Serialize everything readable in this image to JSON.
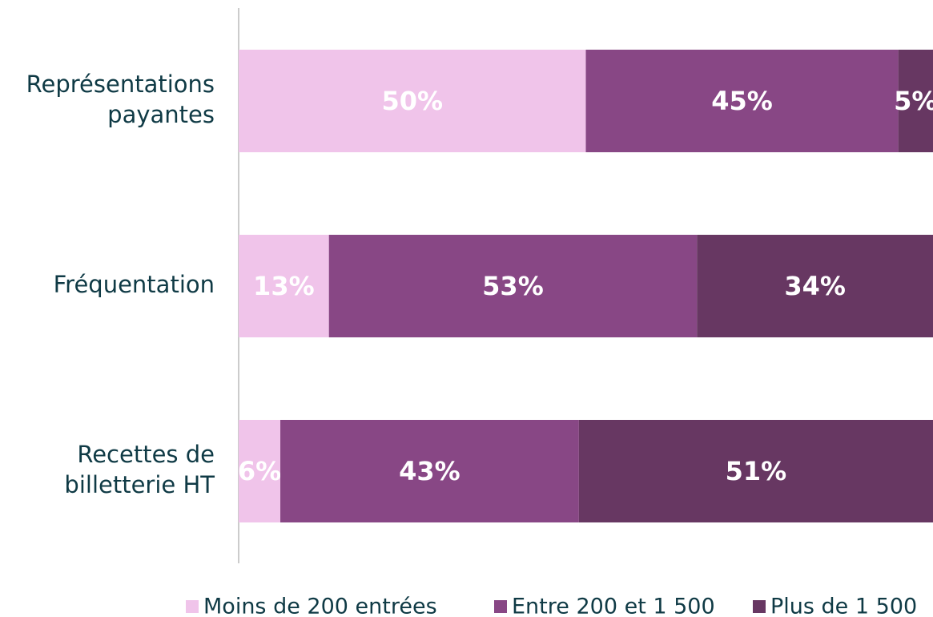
{
  "chart_data": {
    "type": "stacked-bar-horizontal",
    "categories": [
      [
        "Représentations",
        "payantes"
      ],
      [
        "Fréquentation"
      ],
      [
        "Recettes de",
        "billetterie HT"
      ]
    ],
    "xlim": [
      0,
      100
    ],
    "series": [
      {
        "name": "Moins de 200 entrées",
        "color": "#f0c4ea",
        "values": [
          50,
          13,
          6
        ],
        "value_labels": [
          "50%",
          "13%",
          "6%"
        ]
      },
      {
        "name": "Entre 200 et 1 500",
        "color": "#884785",
        "values": [
          45,
          53,
          43
        ],
        "value_labels": [
          "45%",
          "53%",
          "43%"
        ]
      },
      {
        "name": "Plus de 1 500",
        "color": "#673762",
        "values": [
          5,
          34,
          51
        ],
        "value_labels": [
          "5%",
          "34%",
          "51%"
        ]
      }
    ]
  }
}
